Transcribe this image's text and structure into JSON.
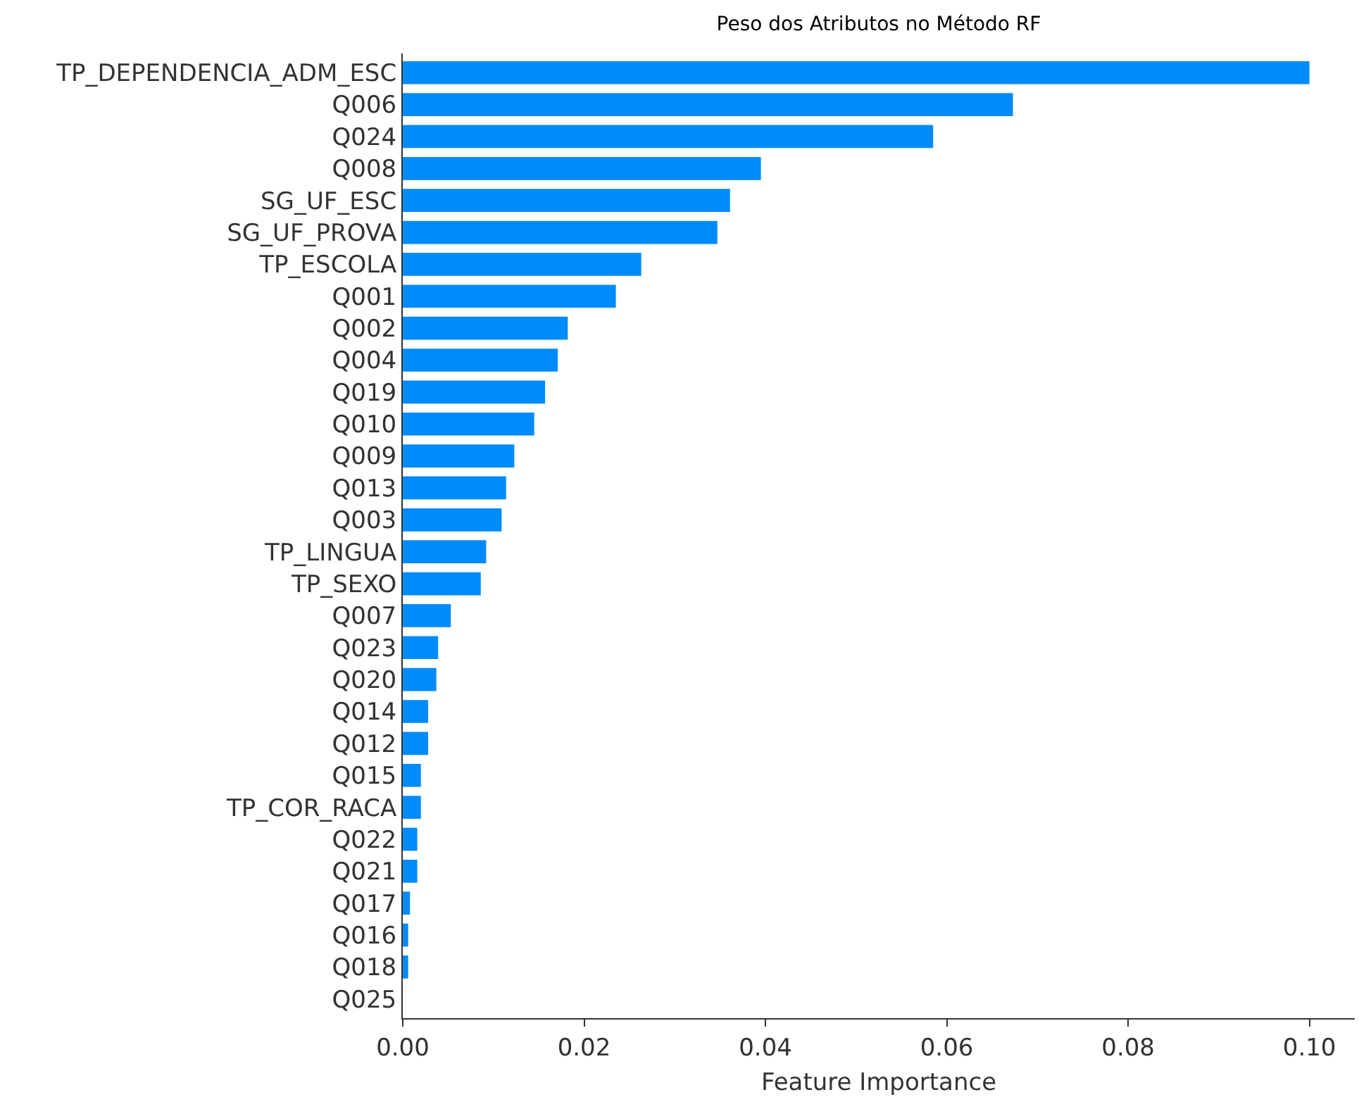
{
  "chart_data": {
    "type": "bar",
    "orientation": "horizontal",
    "title": "Peso dos Atributos no Método RF",
    "xlabel": "Feature Importance",
    "categories": [
      "TP_DEPENDENCIA_ADM_ESC",
      "Q006",
      "Q024",
      "Q008",
      "SG_UF_ESC",
      "SG_UF_PROVA",
      "TP_ESCOLA",
      "Q001",
      "Q002",
      "Q004",
      "Q019",
      "Q010",
      "Q009",
      "Q013",
      "Q003",
      "TP_LINGUA",
      "TP_SEXO",
      "Q007",
      "Q023",
      "Q020",
      "Q014",
      "Q012",
      "Q015",
      "TP_COR_RACA",
      "Q022",
      "Q021",
      "Q017",
      "Q016",
      "Q018",
      "Q025"
    ],
    "values": [
      0.1,
      0.0673,
      0.0585,
      0.0395,
      0.0361,
      0.0347,
      0.0263,
      0.0235,
      0.0182,
      0.0171,
      0.0157,
      0.0145,
      0.0123,
      0.0114,
      0.0109,
      0.0092,
      0.0086,
      0.0053,
      0.0039,
      0.0037,
      0.0028,
      0.0028,
      0.002,
      0.002,
      0.0016,
      0.0016,
      0.0008,
      0.0006,
      0.0006,
      0
    ],
    "color": "#008bfb",
    "xlim": [
      0,
      0.105
    ],
    "xticks": [
      {
        "value": 0,
        "label": "0.00"
      },
      {
        "value": 0.02,
        "label": "0.02"
      },
      {
        "value": 0.04,
        "label": "0.04"
      },
      {
        "value": 0.06,
        "label": "0.06"
      },
      {
        "value": 0.08,
        "label": "0.08"
      },
      {
        "value": 0.1,
        "label": "0.10"
      }
    ]
  }
}
